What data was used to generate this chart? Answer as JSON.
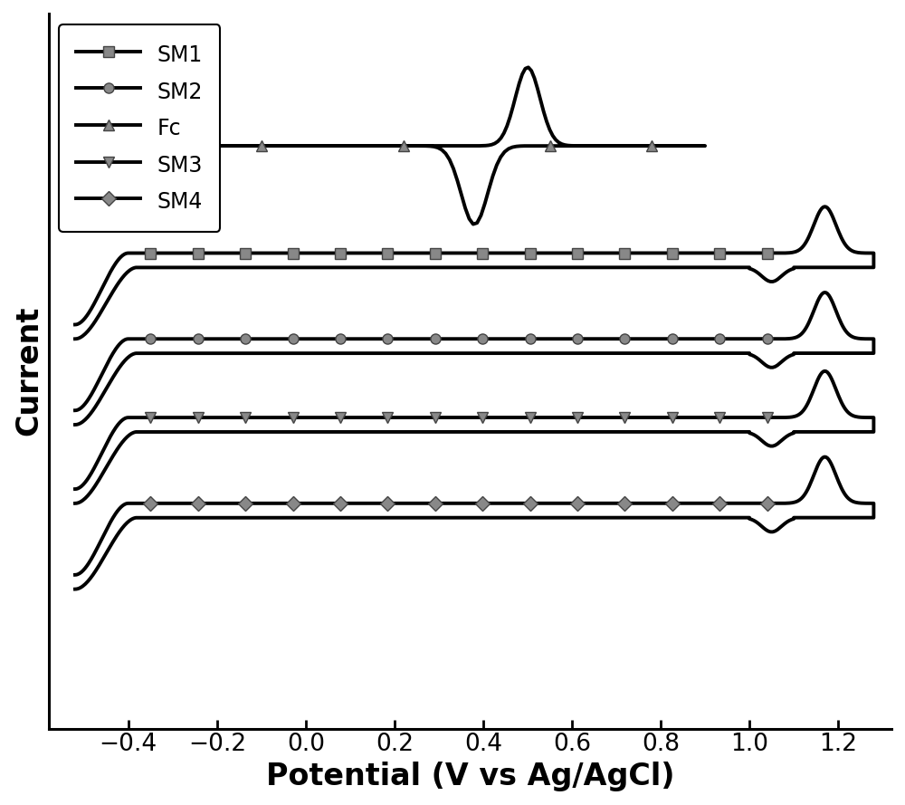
{
  "xlabel": "Potential (V vs Ag/AgCl)",
  "ylabel": "Current",
  "xlim": [
    -0.58,
    1.32
  ],
  "xticks": [
    -0.4,
    -0.2,
    0.0,
    0.2,
    0.4,
    0.6,
    0.8,
    1.0,
    1.2
  ],
  "xlabel_fontsize": 24,
  "ylabel_fontsize": 24,
  "tick_fontsize": 19,
  "legend_fontsize": 17,
  "background_color": "#ffffff",
  "line_color": "#000000",
  "marker_color": "#888888",
  "linewidth": 2.8
}
